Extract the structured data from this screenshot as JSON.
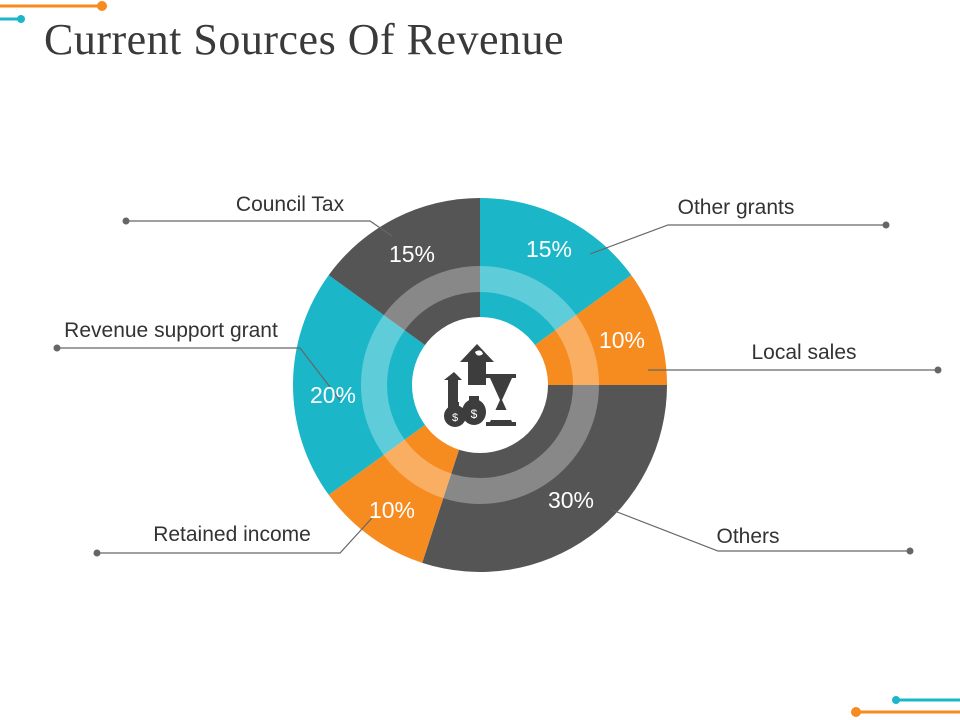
{
  "slide": {
    "title": "Current Sources Of Revenue"
  },
  "colors": {
    "teal": "#1bb7c9",
    "orange": "#f68b1f",
    "gray": "#555555",
    "title": "#3a3a3a",
    "leader": "#666666"
  },
  "center_icon": "revenue-growth-money-bags-hourglass-icon",
  "chart_data": {
    "type": "pie",
    "style": "donut",
    "title": "Current Sources Of Revenue",
    "start_angle_deg": 0,
    "direction": "clockwise",
    "slices": [
      {
        "label": "Other grants",
        "value": 15,
        "value_label": "15%",
        "color": "#1bb7c9"
      },
      {
        "label": "Local sales",
        "value": 10,
        "value_label": "10%",
        "color": "#f68b1f"
      },
      {
        "label": "Others",
        "value": 30,
        "value_label": "30%",
        "color": "#555555"
      },
      {
        "label": "Retained income",
        "value": 10,
        "value_label": "10%",
        "color": "#f68b1f"
      },
      {
        "label": "Revenue support grant",
        "value": 20,
        "value_label": "20%",
        "color": "#1bb7c9"
      },
      {
        "label": "Council Tax",
        "value": 15,
        "value_label": "15%",
        "color": "#555555"
      }
    ]
  }
}
